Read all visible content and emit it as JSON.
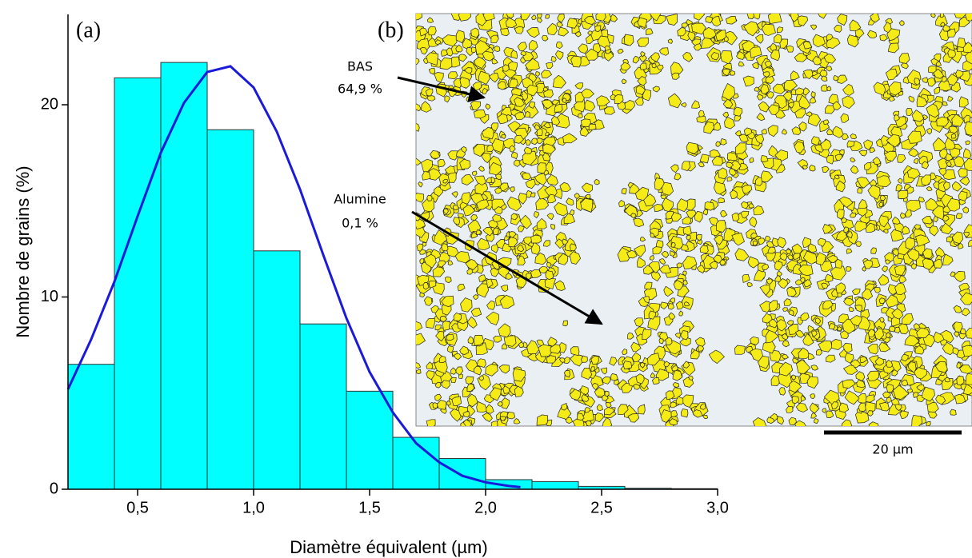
{
  "chart_data": {
    "type": "histogram",
    "panel_label": "(a)",
    "x_label": "Diamètre équivalent (µm)",
    "y_label": "Nombre de grains (%)",
    "bins": [
      0.2,
      0.4,
      0.6,
      0.8,
      1.0,
      1.2,
      1.4,
      1.6,
      1.8,
      2.0,
      2.2,
      2.4,
      2.6,
      2.8,
      3.0
    ],
    "values": [
      6.5,
      21.4,
      22.2,
      18.7,
      12.4,
      8.6,
      5.1,
      2.7,
      1.6,
      0.5,
      0.4,
      0.15,
      0.05,
      0.03
    ],
    "color": "#00ffff",
    "fit": {
      "x": [
        0.2,
        0.3,
        0.4,
        0.5,
        0.6,
        0.7,
        0.8,
        0.9,
        1.0,
        1.1,
        1.2,
        1.3,
        1.4,
        1.5,
        1.6,
        1.7,
        1.8,
        1.9,
        2.0,
        2.1,
        2.15
      ],
      "values": [
        5.2,
        7.8,
        10.8,
        14.2,
        17.5,
        20.1,
        21.7,
        22.0,
        20.9,
        18.6,
        15.6,
        12.2,
        8.9,
        6.1,
        4.0,
        2.4,
        1.4,
        0.7,
        0.36,
        0.17,
        0.11
      ],
      "color": "#1a1ad8"
    },
    "xlim": [
      0.2,
      3.0
    ],
    "xticks": [
      {
        "value": 0.5,
        "label": "0,5"
      },
      {
        "value": 1.0,
        "label": "1,0"
      },
      {
        "value": 1.5,
        "label": "1,5"
      },
      {
        "value": 2.0,
        "label": "2,0"
      },
      {
        "value": 2.5,
        "label": "2,5"
      },
      {
        "value": 3.0,
        "label": "3,0"
      }
    ],
    "ylim": [
      0,
      24.7
    ],
    "yticks": [
      0,
      10,
      20
    ]
  },
  "image_panel": {
    "panel_label": "(b)",
    "annotations": [
      {
        "name": "BAS",
        "value": "64,9 %"
      },
      {
        "name": "Alumine",
        "value": "0,1 %"
      }
    ],
    "scale_bar": "20 µm"
  }
}
